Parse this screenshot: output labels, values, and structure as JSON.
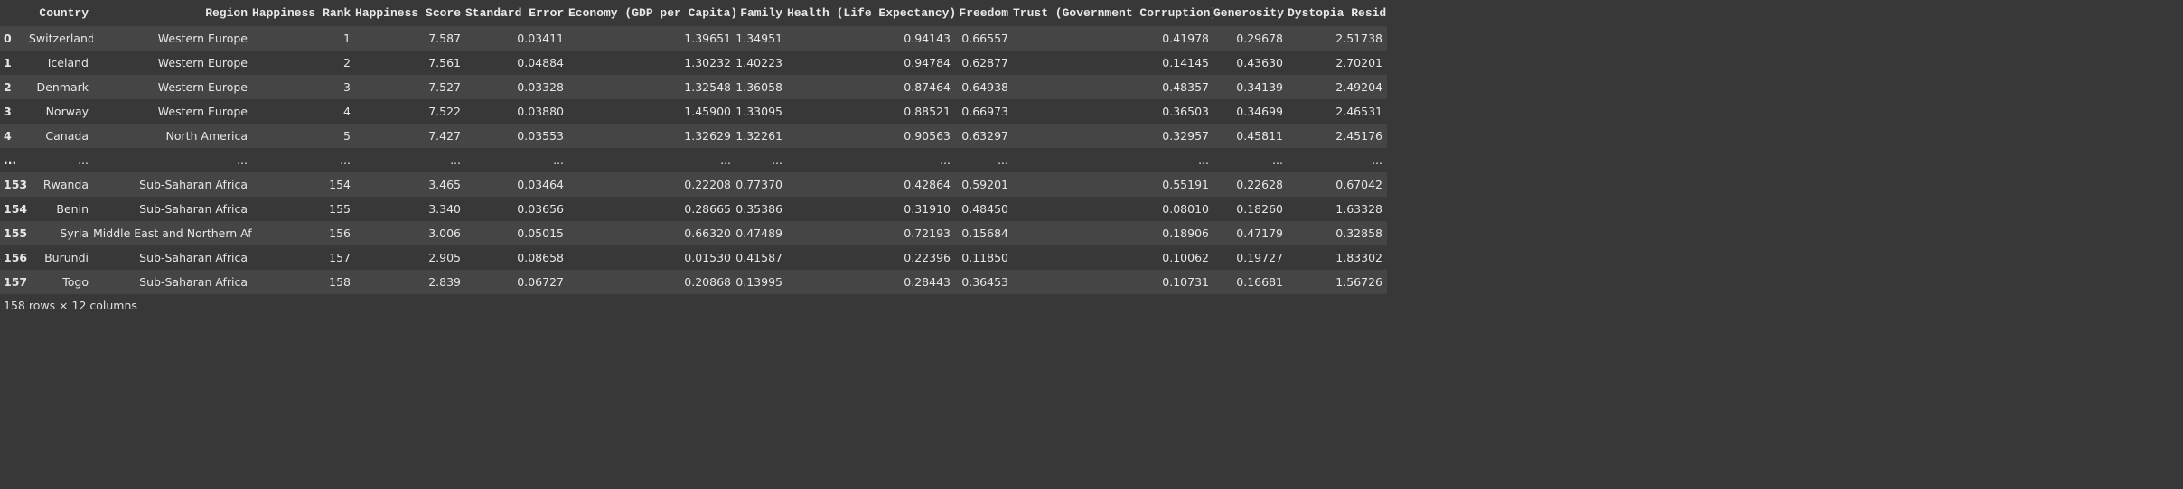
{
  "table": {
    "columns": [
      "Country",
      "Region",
      "Happiness Rank",
      "Happiness Score",
      "Standard Error",
      "Economy (GDP per Capita)",
      "Family",
      "Health (Life Expectancy)",
      "Freedom",
      "Trust (Government Corruption)",
      "Generosity",
      "Dystopia Residual"
    ],
    "rows": [
      {
        "index": "0",
        "cells": [
          "Switzerland",
          "Western Europe",
          "1",
          "7.587",
          "0.03411",
          "1.39651",
          "1.34951",
          "0.94143",
          "0.66557",
          "0.41978",
          "0.29678",
          "2.51738"
        ]
      },
      {
        "index": "1",
        "cells": [
          "Iceland",
          "Western Europe",
          "2",
          "7.561",
          "0.04884",
          "1.30232",
          "1.40223",
          "0.94784",
          "0.62877",
          "0.14145",
          "0.43630",
          "2.70201"
        ]
      },
      {
        "index": "2",
        "cells": [
          "Denmark",
          "Western Europe",
          "3",
          "7.527",
          "0.03328",
          "1.32548",
          "1.36058",
          "0.87464",
          "0.64938",
          "0.48357",
          "0.34139",
          "2.49204"
        ]
      },
      {
        "index": "3",
        "cells": [
          "Norway",
          "Western Europe",
          "4",
          "7.522",
          "0.03880",
          "1.45900",
          "1.33095",
          "0.88521",
          "0.66973",
          "0.36503",
          "0.34699",
          "2.46531"
        ]
      },
      {
        "index": "4",
        "cells": [
          "Canada",
          "North America",
          "5",
          "7.427",
          "0.03553",
          "1.32629",
          "1.32261",
          "0.90563",
          "0.63297",
          "0.32957",
          "0.45811",
          "2.45176"
        ]
      },
      {
        "index": "...",
        "cells": [
          "...",
          "...",
          "...",
          "...",
          "...",
          "...",
          "...",
          "...",
          "...",
          "...",
          "...",
          "..."
        ]
      },
      {
        "index": "153",
        "cells": [
          "Rwanda",
          "Sub-Saharan Africa",
          "154",
          "3.465",
          "0.03464",
          "0.22208",
          "0.77370",
          "0.42864",
          "0.59201",
          "0.55191",
          "0.22628",
          "0.67042"
        ]
      },
      {
        "index": "154",
        "cells": [
          "Benin",
          "Sub-Saharan Africa",
          "155",
          "3.340",
          "0.03656",
          "0.28665",
          "0.35386",
          "0.31910",
          "0.48450",
          "0.08010",
          "0.18260",
          "1.63328"
        ]
      },
      {
        "index": "155",
        "cells": [
          "Syria",
          "Middle East and Northern Africa",
          "156",
          "3.006",
          "0.05015",
          "0.66320",
          "0.47489",
          "0.72193",
          "0.15684",
          "0.18906",
          "0.47179",
          "0.32858"
        ]
      },
      {
        "index": "156",
        "cells": [
          "Burundi",
          "Sub-Saharan Africa",
          "157",
          "2.905",
          "0.08658",
          "0.01530",
          "0.41587",
          "0.22396",
          "0.11850",
          "0.10062",
          "0.19727",
          "1.83302"
        ]
      },
      {
        "index": "157",
        "cells": [
          "Togo",
          "Sub-Saharan Africa",
          "158",
          "2.839",
          "0.06727",
          "0.20868",
          "0.13995",
          "0.28443",
          "0.36453",
          "0.10731",
          "0.16681",
          "1.56726"
        ]
      }
    ]
  },
  "footer": "158 rows × 12 columns"
}
